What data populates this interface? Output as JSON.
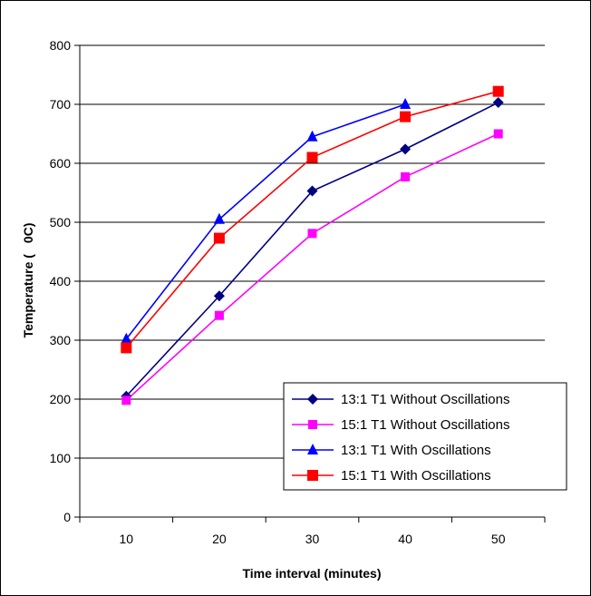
{
  "chart_data": {
    "type": "line",
    "x": [
      10,
      20,
      30,
      40,
      50
    ],
    "xlabel": "Time interval (minutes)",
    "ylabel": "Temperature (",
    "ylabel_unit": "0C)",
    "ylim": [
      0,
      800
    ],
    "yticks": [
      0,
      100,
      200,
      300,
      400,
      500,
      600,
      700,
      800
    ],
    "xticks": [
      "10",
      "20",
      "30",
      "40",
      "50"
    ],
    "grid": "horizontal",
    "legend_position": "bottom-right",
    "series": [
      {
        "name": "13:1 T1 Without Oscillations",
        "color": "#000080",
        "marker": "diamond",
        "values": [
          205,
          375,
          553,
          624,
          703
        ]
      },
      {
        "name": "15:1 T1 Without Oscillations",
        "color": "#ff00ff",
        "marker": "square",
        "values": [
          198,
          342,
          481,
          577,
          650
        ]
      },
      {
        "name": "13:1 T1 With Oscillations",
        "color": "#0000ff",
        "marker": "triangle",
        "values": [
          302,
          505,
          645,
          700,
          null
        ]
      },
      {
        "name": "15:1 T1 With Oscillations",
        "color": "#ff0000",
        "marker": "square",
        "values": [
          287,
          473,
          610,
          679,
          722
        ]
      }
    ]
  }
}
